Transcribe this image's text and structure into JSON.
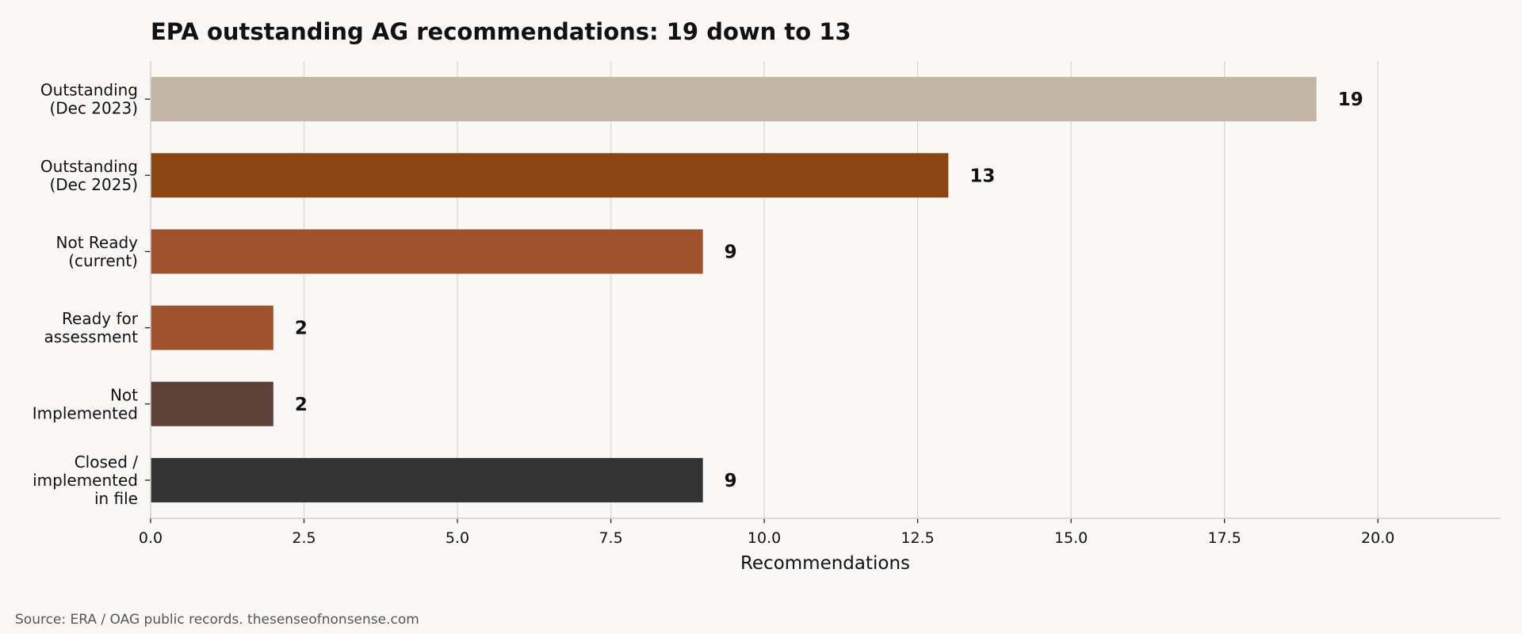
{
  "chart_data": {
    "type": "bar",
    "orientation": "horizontal",
    "title": "EPA outstanding AG recommendations: 19 down to 13",
    "xlabel": "Recommendations",
    "ylabel": "",
    "categories": [
      [
        "Outstanding",
        "(Dec 2023)"
      ],
      [
        "Outstanding",
        "(Dec 2025)"
      ],
      [
        "Not Ready",
        "(current)"
      ],
      [
        "Ready for",
        "assessment"
      ],
      [
        "Not",
        "Implemented"
      ],
      [
        "Closed /",
        "implemented",
        "in file"
      ]
    ],
    "values": [
      19,
      13,
      9,
      2,
      2,
      9
    ],
    "value_labels": [
      "19",
      "13",
      "9",
      "2",
      "2",
      "9"
    ],
    "colors": [
      "#c4b6a6",
      "#8b4513",
      "#a0522d",
      "#a0522d",
      "#5d4037",
      "#333333"
    ],
    "xlim": [
      0,
      22
    ],
    "xticks": [
      0,
      2.5,
      5,
      7.5,
      10,
      12.5,
      15,
      17.5,
      20
    ],
    "xtick_labels": [
      "0.0",
      "2.5",
      "5.0",
      "7.5",
      "10.0",
      "12.5",
      "15.0",
      "17.5",
      "20.0"
    ],
    "grid": "vertical",
    "legend": "none"
  },
  "source_note": "Source: ERA / OAG public records. thesenseofnonsense.com"
}
